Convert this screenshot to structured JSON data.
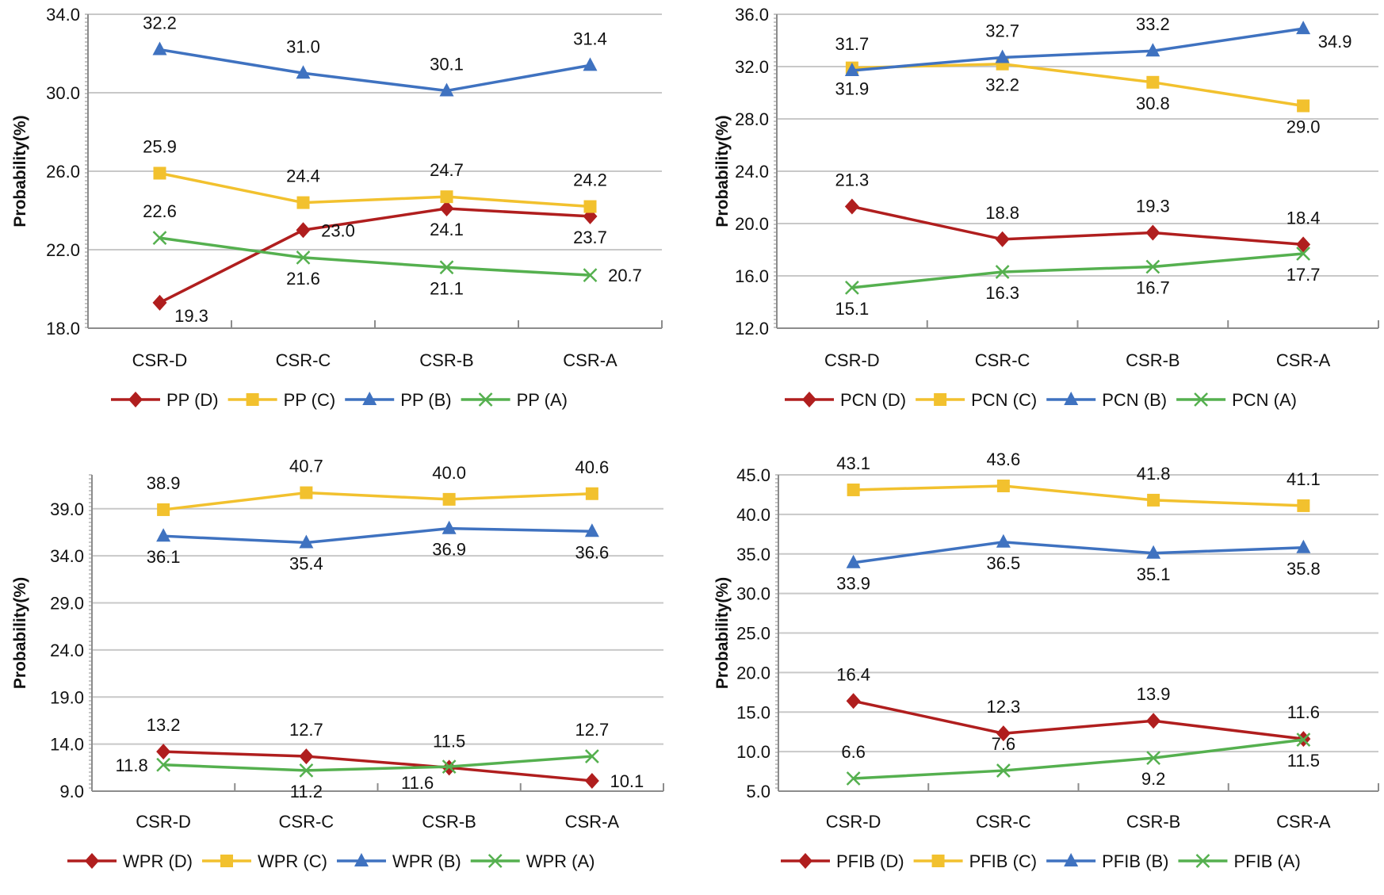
{
  "chart_data": [
    {
      "type": "line",
      "title": "",
      "xlabel": "",
      "ylabel": "Probability(%)",
      "categories": [
        "CSR-D",
        "CSR-C",
        "CSR-B",
        "CSR-A"
      ],
      "ylim": [
        18.0,
        34.0
      ],
      "yticks": [
        "18.0",
        "22.0",
        "26.0",
        "30.0",
        "34.0"
      ],
      "grid": true,
      "legend_position": "bottom",
      "series": [
        {
          "name": "PP (D)",
          "key": "D",
          "values": [
            19.3,
            23.0,
            24.1,
            23.7
          ],
          "labels": [
            "19.3",
            "23.0",
            "24.1",
            "23.7"
          ],
          "label_placement": [
            "below-right",
            "right",
            "below",
            "below"
          ]
        },
        {
          "name": "PP (C)",
          "key": "C",
          "values": [
            25.9,
            24.4,
            24.7,
            24.2
          ],
          "labels": [
            "25.9",
            "24.4",
            "24.7",
            "24.2"
          ],
          "label_placement": [
            "above",
            "above",
            "above",
            "above"
          ]
        },
        {
          "name": "PP (B)",
          "key": "B",
          "values": [
            32.2,
            31.0,
            30.1,
            31.4
          ],
          "labels": [
            "32.2",
            "31.0",
            "30.1",
            "31.4"
          ],
          "label_placement": [
            "above",
            "above",
            "above",
            "above"
          ]
        },
        {
          "name": "PP (A)",
          "key": "A",
          "values": [
            22.6,
            21.6,
            21.1,
            20.7
          ],
          "labels": [
            "22.6",
            "21.6",
            "21.1",
            "20.7"
          ],
          "label_placement": [
            "above",
            "below",
            "below",
            "right"
          ]
        }
      ]
    },
    {
      "type": "line",
      "title": "",
      "xlabel": "",
      "ylabel": "Probability(%)",
      "categories": [
        "CSR-D",
        "CSR-C",
        "CSR-B",
        "CSR-A"
      ],
      "ylim": [
        12.0,
        36.0
      ],
      "yticks": [
        "12.0",
        "16.0",
        "20.0",
        "24.0",
        "28.0",
        "32.0",
        "36.0"
      ],
      "grid": true,
      "legend_position": "bottom",
      "series": [
        {
          "name": "PCN (D)",
          "key": "D",
          "values": [
            21.3,
            18.8,
            19.3,
            18.4
          ],
          "labels": [
            "21.3",
            "18.8",
            "19.3",
            "18.4"
          ],
          "label_placement": [
            "above",
            "above",
            "above",
            "above"
          ]
        },
        {
          "name": "PCN (C)",
          "key": "C",
          "values": [
            31.9,
            32.2,
            30.8,
            29.0
          ],
          "labels": [
            "31.9",
            "32.2",
            "30.8",
            "29.0"
          ],
          "label_placement": [
            "below",
            "below",
            "below",
            "below"
          ]
        },
        {
          "name": "PCN (B)",
          "key": "B",
          "values": [
            31.7,
            32.7,
            33.2,
            34.9
          ],
          "labels": [
            "31.7",
            "32.7",
            "33.2",
            "34.9"
          ],
          "label_placement": [
            "above",
            "above",
            "above",
            "below-right"
          ]
        },
        {
          "name": "PCN (A)",
          "key": "A",
          "values": [
            15.1,
            16.3,
            16.7,
            17.7
          ],
          "labels": [
            "15.1",
            "16.3",
            "16.7",
            "17.7"
          ],
          "label_placement": [
            "below",
            "below",
            "below",
            "below"
          ]
        }
      ]
    },
    {
      "type": "line",
      "title": "",
      "xlabel": "",
      "ylabel": "Probability(%)",
      "categories": [
        "CSR-D",
        "CSR-C",
        "CSR-B",
        "CSR-A"
      ],
      "ylim": [
        9.0,
        42.6
      ],
      "yticks": [
        "9.0",
        "14.0",
        "19.0",
        "24.0",
        "29.0",
        "34.0",
        "39.0"
      ],
      "grid": true,
      "legend_position": "bottom",
      "series": [
        {
          "name": "WPR (D)",
          "key": "D",
          "values": [
            13.2,
            12.7,
            11.5,
            10.1
          ],
          "labels": [
            "13.2",
            "12.7",
            "11.5",
            "10.1"
          ],
          "label_placement": [
            "above",
            "above",
            "above",
            "right"
          ]
        },
        {
          "name": "WPR (C)",
          "key": "C",
          "values": [
            38.9,
            40.7,
            40.0,
            40.6
          ],
          "labels": [
            "38.9",
            "40.7",
            "40.0",
            "40.6"
          ],
          "label_placement": [
            "above",
            "above",
            "above",
            "above"
          ]
        },
        {
          "name": "WPR (B)",
          "key": "B",
          "values": [
            36.1,
            35.4,
            36.9,
            36.6
          ],
          "labels": [
            "36.1",
            "35.4",
            "36.9",
            "36.6"
          ],
          "label_placement": [
            "below",
            "below",
            "below",
            "below"
          ]
        },
        {
          "name": "WPR (A)",
          "key": "A",
          "values": [
            11.8,
            11.2,
            11.6,
            12.7
          ],
          "labels": [
            "11.8",
            "11.2",
            "11.6",
            "12.7"
          ],
          "label_placement": [
            "left",
            "below",
            "below-left",
            "above"
          ]
        }
      ]
    },
    {
      "type": "line",
      "title": "",
      "xlabel": "",
      "ylabel": "Probability(%)",
      "categories": [
        "CSR-D",
        "CSR-C",
        "CSR-B",
        "CSR-A"
      ],
      "ylim": [
        5.0,
        45.0
      ],
      "yticks": [
        "5.0",
        "10.0",
        "15.0",
        "20.0",
        "25.0",
        "30.0",
        "35.0",
        "40.0",
        "45.0"
      ],
      "grid": true,
      "legend_position": "bottom",
      "series": [
        {
          "name": "PFIB (D)",
          "key": "D",
          "values": [
            16.4,
            12.3,
            13.9,
            11.6
          ],
          "labels": [
            "16.4",
            "12.3",
            "13.9",
            "11.6"
          ],
          "label_placement": [
            "above",
            "above",
            "above",
            "above"
          ]
        },
        {
          "name": "PFIB (C)",
          "key": "C",
          "values": [
            43.1,
            43.6,
            41.8,
            41.1
          ],
          "labels": [
            "43.1",
            "43.6",
            "41.8",
            "41.1"
          ],
          "label_placement": [
            "above",
            "above",
            "above",
            "above"
          ]
        },
        {
          "name": "PFIB (B)",
          "key": "B",
          "values": [
            33.9,
            36.5,
            35.1,
            35.8
          ],
          "labels": [
            "33.9",
            "36.5",
            "35.1",
            "35.8"
          ],
          "label_placement": [
            "below",
            "below",
            "below",
            "below"
          ]
        },
        {
          "name": "PFIB (A)",
          "key": "A",
          "values": [
            6.6,
            7.6,
            9.2,
            11.5
          ],
          "labels": [
            "6.6",
            "7.6",
            "9.2",
            "11.5"
          ],
          "label_placement": [
            "above",
            "above",
            "below",
            "below"
          ]
        }
      ]
    }
  ],
  "colors": {
    "D": "#B01E1E",
    "C": "#F2C12E",
    "B": "#3F72C0",
    "A": "#55B04F",
    "grid": "#C8C8C8",
    "axis": "#8C8C8C"
  },
  "markers": {
    "D": "diamond",
    "C": "square",
    "B": "triangle",
    "A": "x"
  }
}
